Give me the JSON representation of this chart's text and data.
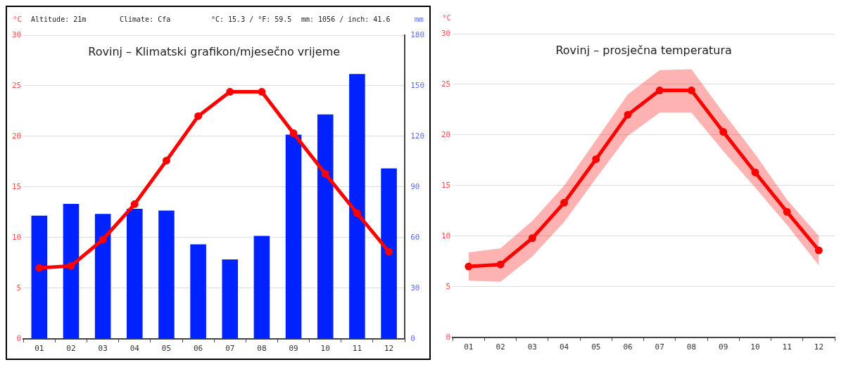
{
  "chart_data": [
    {
      "type": "bar",
      "title": "Rovinj – Klimatski grafikon/mjesečno vrijeme",
      "ylabel": "°C",
      "y2label": "mm",
      "annotations": [
        "Altitude: 21m",
        "Climate: Cfa",
        "°C: 15.3 / °F: 59.5",
        "mm: 1056 / inch: 41.6"
      ],
      "categories": [
        "01",
        "02",
        "03",
        "04",
        "05",
        "06",
        "07",
        "08",
        "09",
        "10",
        "11",
        "12"
      ],
      "series": [
        {
          "axis": "y2",
          "color": "#0022ff",
          "values": [
            73,
            80,
            74,
            77,
            76,
            56,
            47,
            61,
            121,
            133,
            157,
            101
          ]
        },
        {
          "type": "line",
          "axis": "y",
          "color": "#ff0000",
          "values": [
            7.0,
            7.2,
            9.8,
            13.3,
            17.6,
            22.0,
            24.4,
            24.4,
            20.3,
            16.3,
            12.4,
            8.6
          ]
        }
      ],
      "ylim": [
        0,
        30
      ],
      "yticks": [
        0,
        5,
        10,
        15,
        20,
        25,
        30
      ],
      "y2lim": [
        0,
        180
      ],
      "y2ticks": [
        0,
        30,
        60,
        90,
        120,
        150,
        180
      ],
      "grid": "y",
      "legend": false,
      "marker": "circle"
    },
    {
      "type": "line",
      "title": "Rovinj – prosječna temperatura",
      "ylabel": "°C",
      "categories": [
        "01",
        "02",
        "03",
        "04",
        "05",
        "06",
        "07",
        "08",
        "09",
        "10",
        "11",
        "12"
      ],
      "series": [
        {
          "color": "#ff0000",
          "values": [
            7.0,
            7.2,
            9.8,
            13.3,
            17.6,
            22.0,
            24.4,
            24.4,
            20.3,
            16.3,
            12.4,
            8.6
          ],
          "lower": [
            5.6,
            5.5,
            8.0,
            11.4,
            15.7,
            19.9,
            22.2,
            22.2,
            18.4,
            14.8,
            11.1,
            7.1
          ],
          "upper": [
            8.4,
            8.8,
            11.5,
            15.0,
            19.5,
            24.0,
            26.4,
            26.5,
            22.2,
            18.1,
            13.6,
            10.0
          ]
        }
      ],
      "ylim": [
        0,
        30
      ],
      "yticks": [
        0,
        5,
        10,
        15,
        20,
        25,
        30
      ],
      "grid": "y",
      "legend": false,
      "marker": "circle"
    }
  ]
}
